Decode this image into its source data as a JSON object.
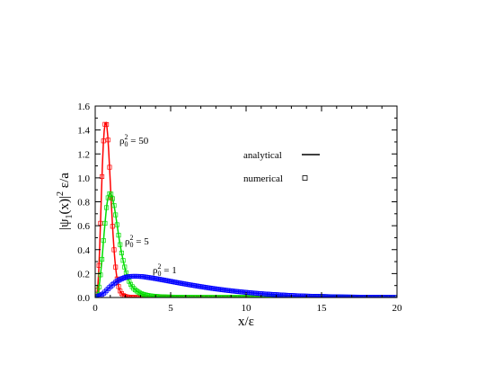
{
  "chart_data": {
    "type": "line",
    "title": "",
    "xlabel": "x/ε",
    "ylabel_parts": [
      "|ψ",
      "1",
      "(x)|",
      "2",
      " ε/a"
    ],
    "xlim": [
      0,
      20
    ],
    "ylim": [
      0,
      1.6
    ],
    "xticks": [
      0,
      5,
      10,
      15,
      20
    ],
    "xtick_labels": [
      "0",
      "5",
      "10",
      "15",
      "20"
    ],
    "yticks": [
      0,
      0.2,
      0.4,
      0.6,
      0.8,
      1.0,
      1.2,
      1.4,
      1.6
    ],
    "ytick_labels": [
      "0.0",
      "0.2",
      "0.4",
      "0.6",
      "0.8",
      "1.0",
      "1.2",
      "1.4",
      "1.6"
    ],
    "grid": false,
    "legend": {
      "placement": "top-right",
      "entries": [
        {
          "label": "analytical",
          "style": "line"
        },
        {
          "label": "numerical",
          "style": "open-square"
        }
      ]
    },
    "series": [
      {
        "color": "#ff0000",
        "annotation": {
          "base": "ρ",
          "sub": "0",
          "sup": "2",
          "tail": " = 50"
        },
        "x": [
          0,
          0.1,
          0.2,
          0.3,
          0.4,
          0.5,
          0.6,
          0.7,
          0.8,
          0.9,
          1.0,
          1.1,
          1.2,
          1.3,
          1.4,
          1.5,
          1.6,
          1.8,
          2.0,
          2.2,
          2.5,
          3.0,
          3.5,
          4,
          5,
          6,
          8,
          10,
          12,
          14,
          16,
          18,
          20
        ],
        "y": [
          0,
          0.02,
          0.14,
          0.43,
          0.82,
          1.18,
          1.4,
          1.46,
          1.4,
          1.21,
          0.96,
          0.71,
          0.49,
          0.32,
          0.2,
          0.12,
          0.07,
          0.025,
          0.009,
          0.004,
          0.002,
          0.001,
          0.0005,
          0,
          0,
          0,
          0,
          0,
          0,
          0,
          0,
          0,
          0
        ]
      },
      {
        "color": "#00dd00",
        "annotation": {
          "base": "ρ",
          "sub": "0",
          "sup": "2",
          "tail": " = 5"
        },
        "x": [
          0,
          0.2,
          0.4,
          0.6,
          0.8,
          1.0,
          1.2,
          1.4,
          1.6,
          1.8,
          2.0,
          2.2,
          2.4,
          2.6,
          2.8,
          3.0,
          3.4,
          3.8,
          4.5,
          5,
          6,
          8,
          10,
          12,
          14,
          16,
          18,
          20
        ],
        "y": [
          0,
          0.05,
          0.25,
          0.55,
          0.8,
          0.87,
          0.8,
          0.65,
          0.48,
          0.34,
          0.23,
          0.15,
          0.1,
          0.07,
          0.05,
          0.035,
          0.02,
          0.012,
          0.006,
          0.004,
          0.002,
          0.001,
          0.001,
          0,
          0,
          0,
          0,
          0
        ]
      },
      {
        "color": "#0000ff",
        "annotation": {
          "base": "ρ",
          "sub": "0",
          "sup": "2",
          "tail": " = 1"
        },
        "x": [
          0,
          0.5,
          1.0,
          1.5,
          2.0,
          2.5,
          3.0,
          3.5,
          4.0,
          5,
          6,
          7,
          8,
          9,
          10,
          11,
          12,
          13,
          14,
          15,
          16,
          17,
          18,
          19,
          20
        ],
        "y": [
          0,
          0.03,
          0.09,
          0.14,
          0.168,
          0.177,
          0.176,
          0.168,
          0.158,
          0.135,
          0.112,
          0.091,
          0.072,
          0.056,
          0.043,
          0.032,
          0.024,
          0.017,
          0.012,
          0.009,
          0.006,
          0.004,
          0.003,
          0.002,
          0.001
        ]
      }
    ]
  }
}
